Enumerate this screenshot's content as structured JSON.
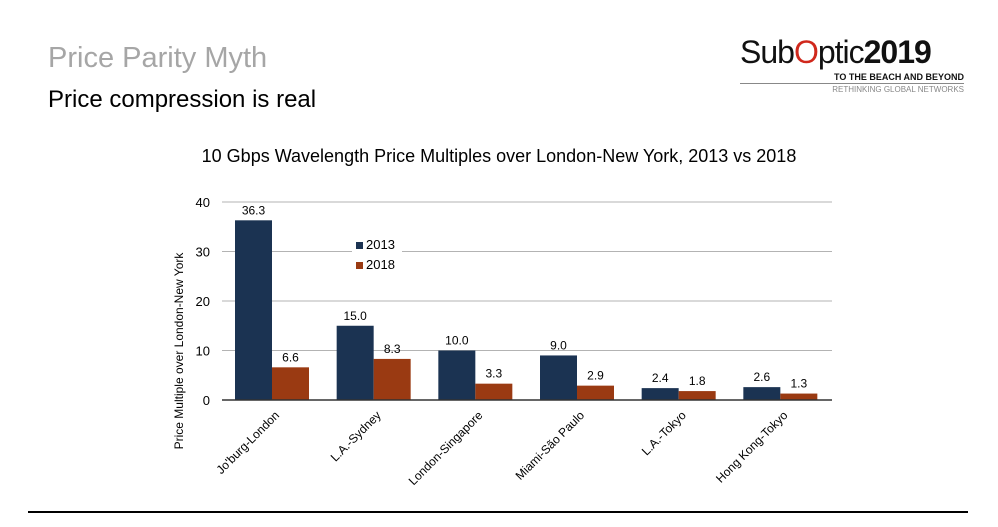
{
  "slide": {
    "title": "Price Parity Myth",
    "subtitle": "Price compression is real",
    "logo": {
      "text_left": "Sub",
      "text_o": "O",
      "text_right": "ptic",
      "year": "2019",
      "tagline": "TO THE BEACH AND BEYOND",
      "tagline2": "RETHINKING GLOBAL NETWORKS"
    }
  },
  "chart_data": {
    "type": "bar",
    "title": "10 Gbps Wavelength Price Multiples over London-New York, 2013 vs 2018",
    "xlabel": "",
    "ylabel": "Price Multiple over London-New York",
    "ylim": [
      0,
      40
    ],
    "yticks": [
      0,
      10,
      20,
      30,
      40
    ],
    "grid": true,
    "legend_placement": "top-left-inside",
    "categories": [
      "Jo'burg-London",
      "L.A.-Sydney",
      "London-Singapore",
      "Miami-São Paulo",
      "L.A.-Tokyo",
      "Hong Kong-Tokyo"
    ],
    "series": [
      {
        "name": "2013",
        "color": "#1b3352",
        "values": [
          36.3,
          15.0,
          10.0,
          9.0,
          2.4,
          2.6
        ]
      },
      {
        "name": "2018",
        "color": "#9a3a12",
        "values": [
          6.6,
          8.3,
          3.3,
          2.9,
          1.8,
          1.3
        ]
      }
    ]
  }
}
